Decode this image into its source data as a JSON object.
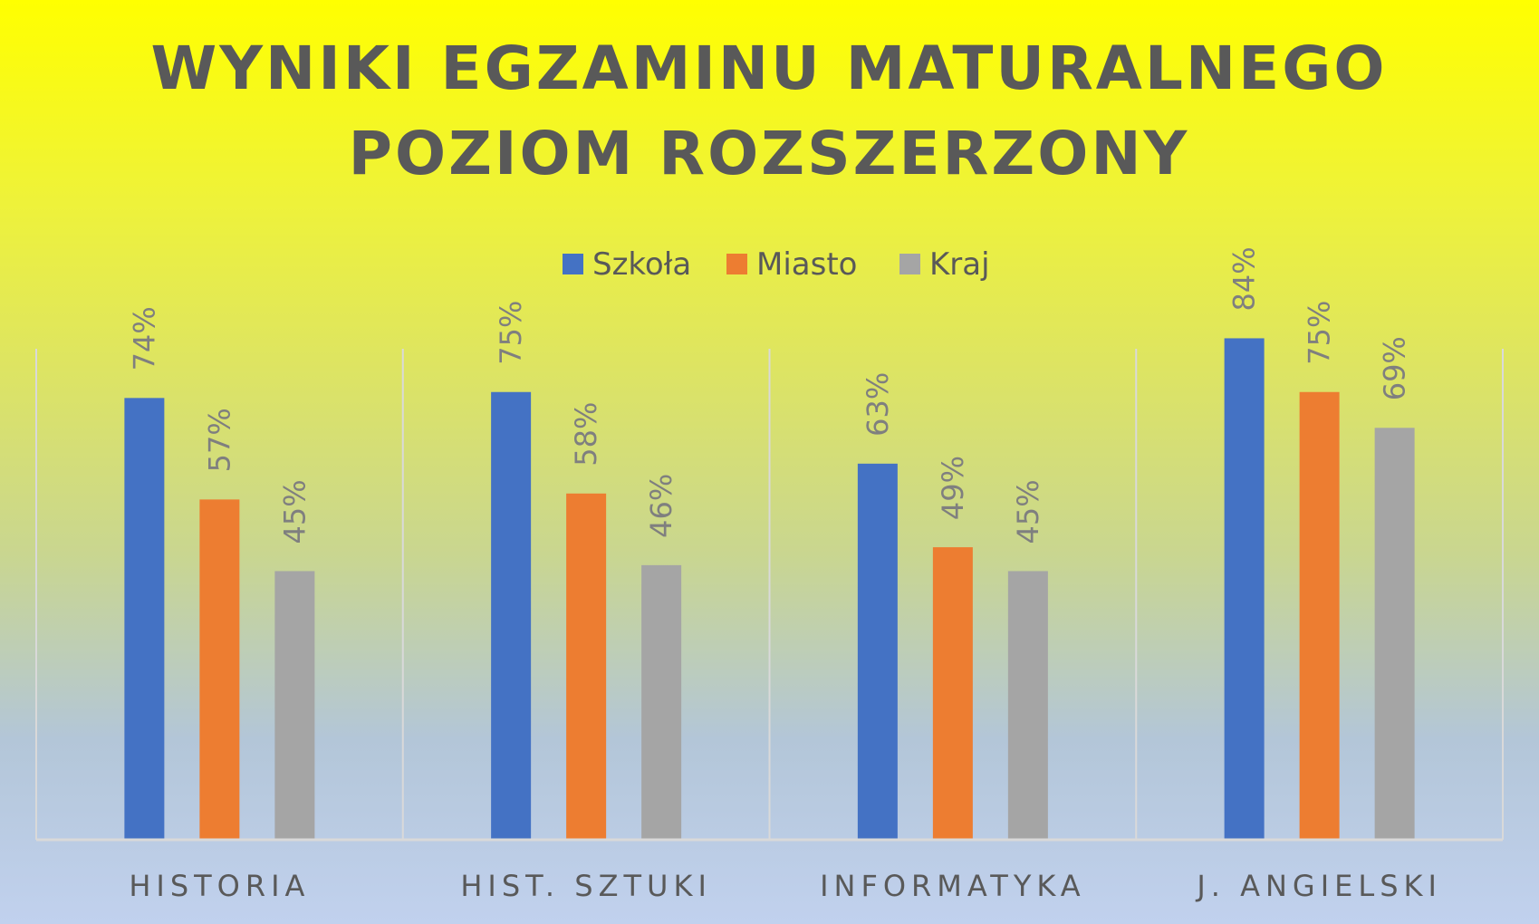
{
  "chart_data": {
    "type": "bar",
    "title_lines": [
      "WYNIKI EGZAMINU MATURALNEGO",
      "POZIOM ROZSZERZONY"
    ],
    "categories": [
      "HISTORIA",
      "HIST. SZTUKI",
      "INFORMATYKA",
      "J. ANGIELSKI"
    ],
    "series": [
      {
        "name": "Szkoła",
        "values": [
          74,
          75,
          63,
          84
        ],
        "labels": [
          "74%",
          "75%",
          "63%",
          "84%"
        ],
        "color": "#4472c4"
      },
      {
        "name": "Miasto",
        "values": [
          57,
          58,
          49,
          75
        ],
        "labels": [
          "57%",
          "58%",
          "49%",
          "75%"
        ],
        "color": "#ed7d31"
      },
      {
        "name": "Kraj",
        "values": [
          45,
          46,
          45,
          69
        ],
        "labels": [
          "45%",
          "46%",
          "45%",
          "69%"
        ],
        "color": "#a5a5a5"
      }
    ],
    "ylim": [
      0,
      90
    ],
    "legend_position": "top",
    "data_label_orientation": "vertical",
    "grid": "vertical category separators"
  },
  "colors": {
    "background_top": "#ffff00",
    "background_bottom": "#c1d1ee",
    "text": "#595959",
    "data_label": "#7f7f7f",
    "axis": "#d9d9d9"
  }
}
